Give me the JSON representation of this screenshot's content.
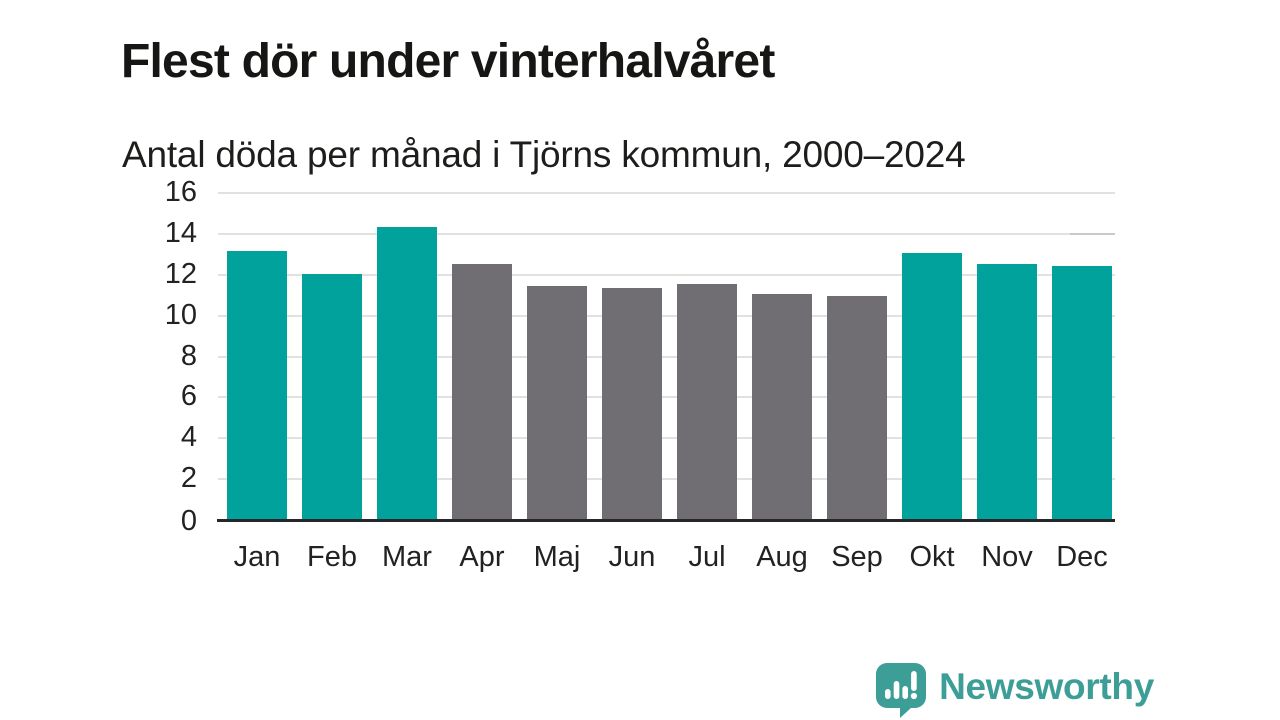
{
  "header": {
    "title": "Flest dör under vinterhalvåret",
    "subtitle": "Antal döda per månad i Tjörns kommun, 2000–2024"
  },
  "chart_data": {
    "type": "bar",
    "title": "Flest dör under vinterhalvåret",
    "subtitle": "Antal döda per månad i Tjörns kommun, 2000–2024",
    "categories": [
      "Jan",
      "Feb",
      "Mar",
      "Apr",
      "Maj",
      "Jun",
      "Jul",
      "Aug",
      "Sep",
      "Okt",
      "Nov",
      "Dec"
    ],
    "values": [
      13.1,
      12.0,
      14.3,
      12.5,
      11.4,
      11.3,
      11.5,
      11.0,
      10.9,
      13.0,
      12.5,
      12.4
    ],
    "bar_colors": [
      "teal",
      "teal",
      "teal",
      "gray",
      "gray",
      "gray",
      "gray",
      "gray",
      "gray",
      "teal",
      "teal",
      "teal"
    ],
    "palette": {
      "teal": "#00a29b",
      "gray": "#706e72"
    },
    "xlabel": "",
    "ylabel": "",
    "ylim": [
      0,
      16
    ],
    "yticks": [
      0,
      2,
      4,
      6,
      8,
      10,
      12,
      14,
      16
    ],
    "grid": "horizontal",
    "legend": "none",
    "right_end_dash_at": 14
  },
  "footer": {
    "brand": "Newsworthy",
    "brand_color": "#3d9e98",
    "logo_icon": "newsworthy-speech-bubble-bar-chart-icon"
  }
}
